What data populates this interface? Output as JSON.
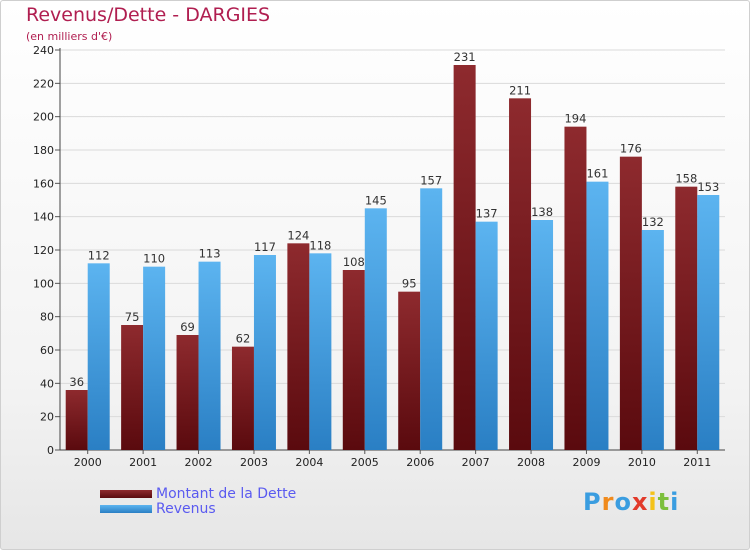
{
  "chart_data": {
    "type": "bar",
    "title": "Revenus/Dette - DARGIES",
    "subtitle": "(en milliers d'€)",
    "categories": [
      "2000",
      "2001",
      "2002",
      "2003",
      "2004",
      "2005",
      "2006",
      "2007",
      "2008",
      "2009",
      "2010",
      "2011"
    ],
    "series": [
      {
        "name": "Montant de la Dette",
        "color": "#7a1418",
        "values": [
          36,
          75,
          69,
          62,
          124,
          108,
          95,
          231,
          211,
          194,
          176,
          158
        ]
      },
      {
        "name": "Revenus",
        "color": "#4aa3e6",
        "values": [
          112,
          110,
          113,
          117,
          118,
          145,
          157,
          137,
          138,
          161,
          132,
          153
        ]
      }
    ],
    "ylim": [
      0,
      240
    ],
    "yticks": [
      0,
      20,
      40,
      60,
      80,
      100,
      120,
      140,
      160,
      180,
      200,
      220,
      240
    ],
    "xlabel": "",
    "ylabel": "",
    "legend": "bottom-left"
  },
  "logo": {
    "letters": [
      "P",
      "r",
      "o",
      "x",
      "i",
      "t",
      "i"
    ],
    "colors": [
      "#3a9de0",
      "#f08a1c",
      "#3a9de0",
      "#e23a2a",
      "#f4c21a",
      "#7cbf3c",
      "#3a9de0"
    ]
  }
}
